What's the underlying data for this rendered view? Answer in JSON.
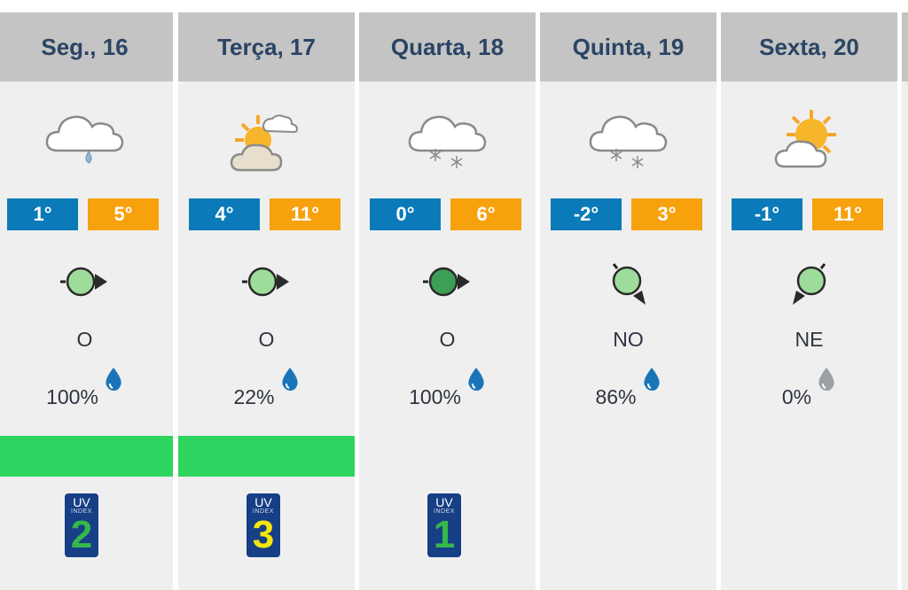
{
  "days": [
    {
      "label": "Seg., 16",
      "tmin": "1°",
      "tmax": "5°",
      "wind_dir": "O",
      "rain_pct": "100%",
      "rain_drop_color": "#1a75b8",
      "uv_label": "UV",
      "uv_sub": "INDEX",
      "uv": "2",
      "uv_color": "#34b84a",
      "weather_icon": "cloud-rain-icon",
      "wind_icon": "wind-arrow-east-icon"
    },
    {
      "label": "Terça, 17",
      "tmin": "4°",
      "tmax": "11°",
      "wind_dir": "O",
      "rain_pct": "22%",
      "rain_drop_color": "#1a75b8",
      "uv_label": "UV",
      "uv_sub": "INDEX",
      "uv": "3",
      "uv_color": "#f5e60a",
      "weather_icon": "sun-clouds-icon",
      "wind_icon": "wind-arrow-east-icon"
    },
    {
      "label": "Quarta, 18",
      "tmin": "0°",
      "tmax": "6°",
      "wind_dir": "O",
      "rain_pct": "100%",
      "rain_drop_color": "#1a75b8",
      "uv_label": "UV",
      "uv_sub": "INDEX",
      "uv": "1",
      "uv_color": "#34b84a",
      "weather_icon": "cloud-snow-icon",
      "wind_icon": "wind-arrow-east-strong-icon"
    },
    {
      "label": "Quinta, 19",
      "tmin": "-2°",
      "tmax": "3°",
      "wind_dir": "NO",
      "rain_pct": "86%",
      "rain_drop_color": "#1a75b8",
      "weather_icon": "cloud-snow-icon",
      "wind_icon": "wind-arrow-southeast-icon"
    },
    {
      "label": "Sexta, 20",
      "tmin": "-1°",
      "tmax": "11°",
      "wind_dir": "NE",
      "rain_pct": "0%",
      "rain_drop_color": "#9aa0a6",
      "weather_icon": "sun-cloud-icon",
      "wind_icon": "wind-arrow-southwest-icon"
    }
  ],
  "colors": {
    "header_bg": "#c4c4c4",
    "header_text": "#2a4464",
    "column_bg": "#efefef",
    "temp_min": "#0a7ab8",
    "temp_max": "#f7a10c",
    "bar_green": "#2ed460",
    "wind_circle": "#9edc9b",
    "wind_circle_dark": "#3c9f55",
    "uv_bg": "#173f86"
  }
}
